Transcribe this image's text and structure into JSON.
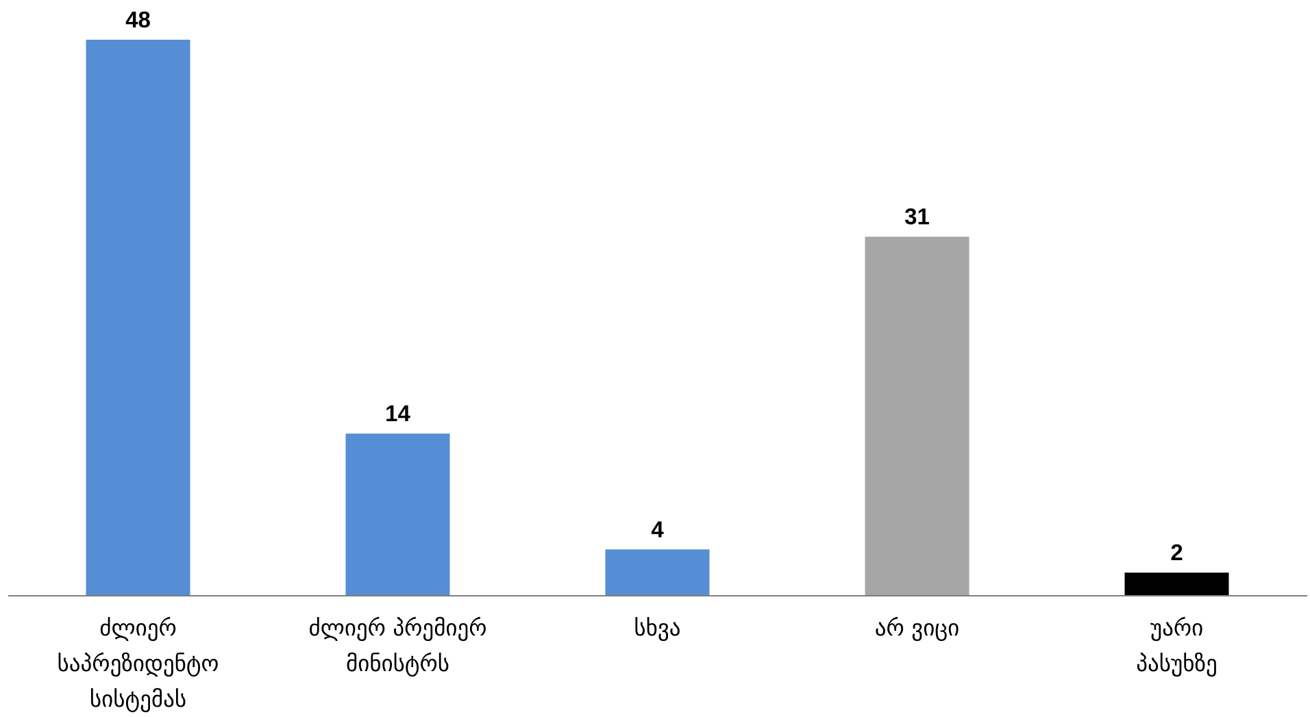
{
  "chart_data": {
    "type": "bar",
    "title": "",
    "xlabel": "",
    "ylabel": "",
    "ylim": [
      0,
      48
    ],
    "grid": false,
    "legend": "none",
    "categories": [
      [
        "ძლიერ",
        "საპრეზიდენტო",
        "სისტემას"
      ],
      [
        "ძლიერ პრემიერ",
        "მინისტრს"
      ],
      [
        "სხვა"
      ],
      [
        "არ ვიცი"
      ],
      [
        "უარი",
        "პასუხზე"
      ]
    ],
    "values": [
      48,
      14,
      4,
      31,
      2
    ],
    "data_labels": [
      "48",
      "14",
      "4",
      "31",
      "2"
    ],
    "colors": [
      "#558ED5",
      "#558ED5",
      "#558ED5",
      "#A6A6A6",
      "#000000"
    ],
    "axis_color": "#7F7F7F"
  }
}
